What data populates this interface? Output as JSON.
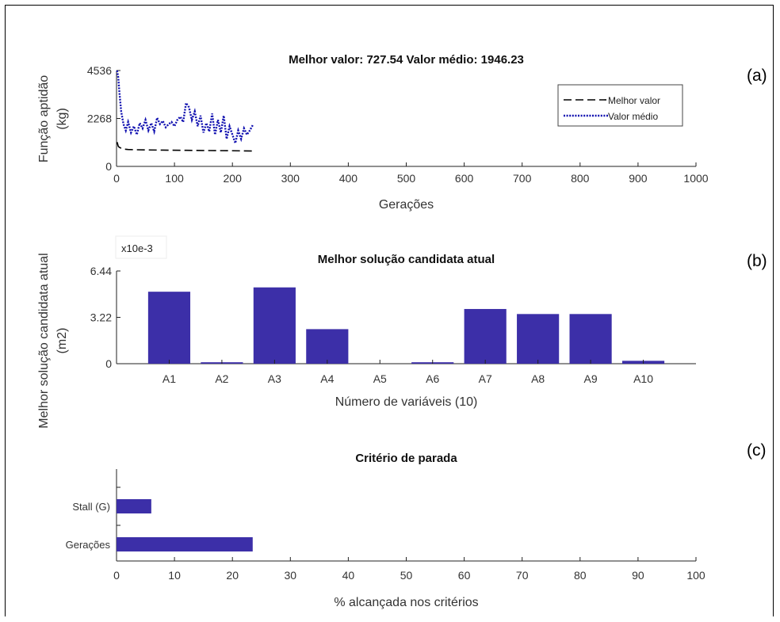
{
  "figure": {
    "panel_labels": [
      "(a)",
      "(b)",
      "(c)"
    ]
  },
  "chart_data": [
    {
      "type": "line",
      "title": "Melhor valor: 727.54    Valor médio: 1946.23",
      "xlabel": "Gerações",
      "ylabel": [
        "Função aptidão",
        "(kg)"
      ],
      "xlim": [
        0,
        1000
      ],
      "ylim": [
        0,
        4536
      ],
      "xticks": [
        0,
        100,
        200,
        300,
        400,
        500,
        600,
        700,
        800,
        900,
        1000
      ],
      "yticks": [
        0,
        2268,
        4536
      ],
      "grid": false,
      "legend_position": "top-right",
      "legend": [
        "Melhor valor",
        "Valor médio"
      ],
      "colors": {
        "best": "#000000",
        "mean": "#1010b0"
      },
      "series": [
        {
          "name": "Melhor valor",
          "style": "dashed",
          "x": [
            1,
            2,
            3,
            5,
            8,
            12,
            20,
            30,
            50,
            80,
            120,
            160,
            200,
            235
          ],
          "y": [
            1150,
            1050,
            950,
            900,
            860,
            820,
            800,
            790,
            780,
            770,
            760,
            750,
            740,
            727.54
          ]
        },
        {
          "name": "Valor médio",
          "style": "dotted",
          "x": [
            1,
            3,
            5,
            8,
            12,
            16,
            20,
            25,
            30,
            35,
            40,
            45,
            50,
            55,
            60,
            65,
            70,
            75,
            80,
            85,
            90,
            95,
            100,
            105,
            110,
            115,
            120,
            125,
            130,
            135,
            140,
            145,
            150,
            155,
            160,
            165,
            170,
            175,
            180,
            185,
            190,
            195,
            200,
            205,
            210,
            215,
            220,
            225,
            230,
            235
          ],
          "y": [
            4536,
            4200,
            3500,
            2600,
            2000,
            1700,
            2100,
            1600,
            1900,
            1500,
            2050,
            1800,
            2200,
            1700,
            2050,
            1650,
            2300,
            2000,
            2150,
            1850,
            2000,
            2100,
            1900,
            2200,
            2350,
            2100,
            3000,
            2800,
            2200,
            2600,
            1900,
            2400,
            1600,
            2050,
            1650,
            2500,
            1500,
            2200,
            1600,
            2400,
            1300,
            1900,
            1500,
            1100,
            1700,
            1300,
            1800,
            1500,
            1700,
            1946.23
          ]
        }
      ]
    },
    {
      "type": "bar",
      "title": "Melhor solução candidata atual",
      "xlabel": "Número de variáveis (10)",
      "ylabel": [
        "Melhor solução candidata atual",
        "(m2)"
      ],
      "multiplier": "x10e-3",
      "ylim": [
        0,
        6.44
      ],
      "yticks": [
        0,
        3.22,
        6.44
      ],
      "categories": [
        "A1",
        "A2",
        "A3",
        "A4",
        "A5",
        "A6",
        "A7",
        "A8",
        "A9",
        "A10"
      ],
      "values": [
        5.0,
        0.1,
        5.3,
        2.4,
        0.0,
        0.1,
        3.8,
        3.45,
        3.45,
        0.2
      ],
      "colors": {
        "bar": "#3c2fa8"
      }
    },
    {
      "type": "bar",
      "orientation": "horizontal",
      "title": "Critério de parada",
      "xlabel": "% alcançada nos critérios",
      "xlim": [
        0,
        100
      ],
      "xticks": [
        0,
        10,
        20,
        30,
        40,
        50,
        60,
        70,
        80,
        90,
        100
      ],
      "categories": [
        "Gerações",
        "Stall (G)"
      ],
      "values": [
        23.5,
        6
      ],
      "colors": {
        "bar": "#3c2fa8"
      }
    }
  ]
}
